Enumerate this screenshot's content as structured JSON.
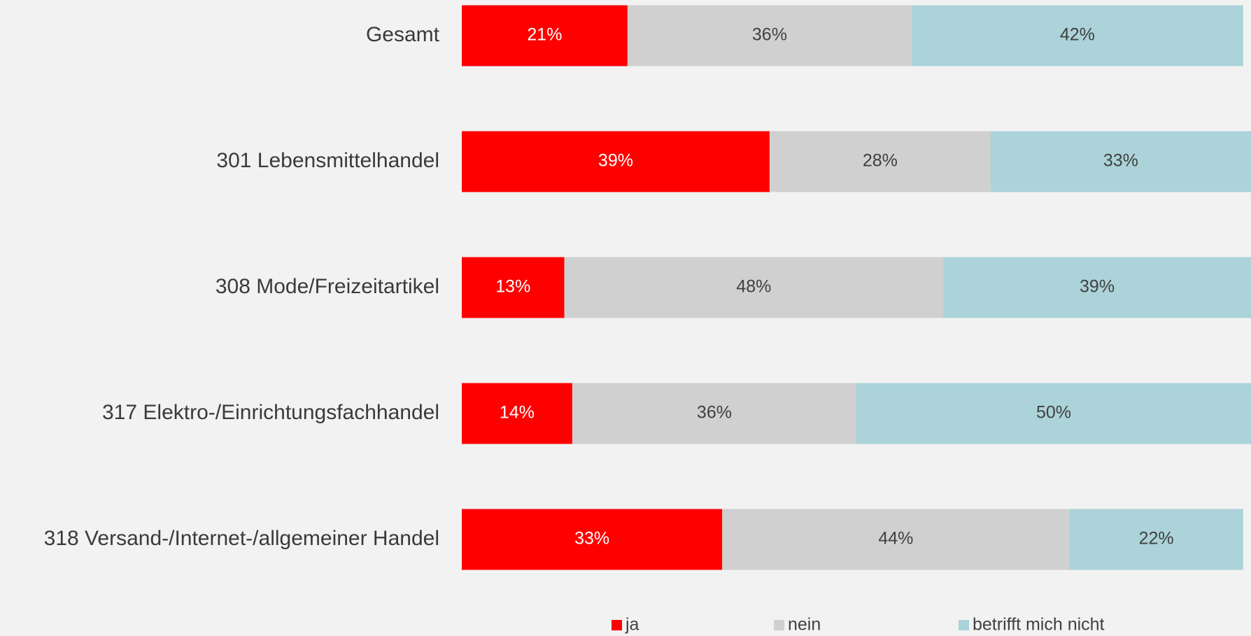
{
  "chart_data": {
    "type": "bar",
    "orientation": "horizontal",
    "stacked": true,
    "categories": [
      "Gesamt",
      "301 Lebensmittelhandel",
      "308 Mode/Freizeitartikel",
      "317 Elektro-/Einrichtungsfachhandel",
      "318 Versand-/Internet-/allgemeiner Handel"
    ],
    "xlim": [
      0,
      100
    ],
    "series": [
      {
        "name": "ja",
        "color": "#ff0000",
        "values": [
          21,
          39,
          13,
          14,
          33
        ],
        "value_labels": [
          "21%",
          "39%",
          "13%",
          "14%",
          "33%"
        ]
      },
      {
        "name": "nein",
        "color": "#d0d0d0",
        "values": [
          36,
          28,
          48,
          36,
          44
        ],
        "value_labels": [
          "36%",
          "28%",
          "48%",
          "36%",
          "44%"
        ]
      },
      {
        "name": "betrifft mich nicht",
        "color": "#abd3d9",
        "values": [
          42,
          33,
          39,
          50,
          22
        ],
        "value_labels": [
          "42%",
          "33%",
          "39%",
          "50%",
          "22%"
        ]
      }
    ],
    "legend": "bottom"
  }
}
